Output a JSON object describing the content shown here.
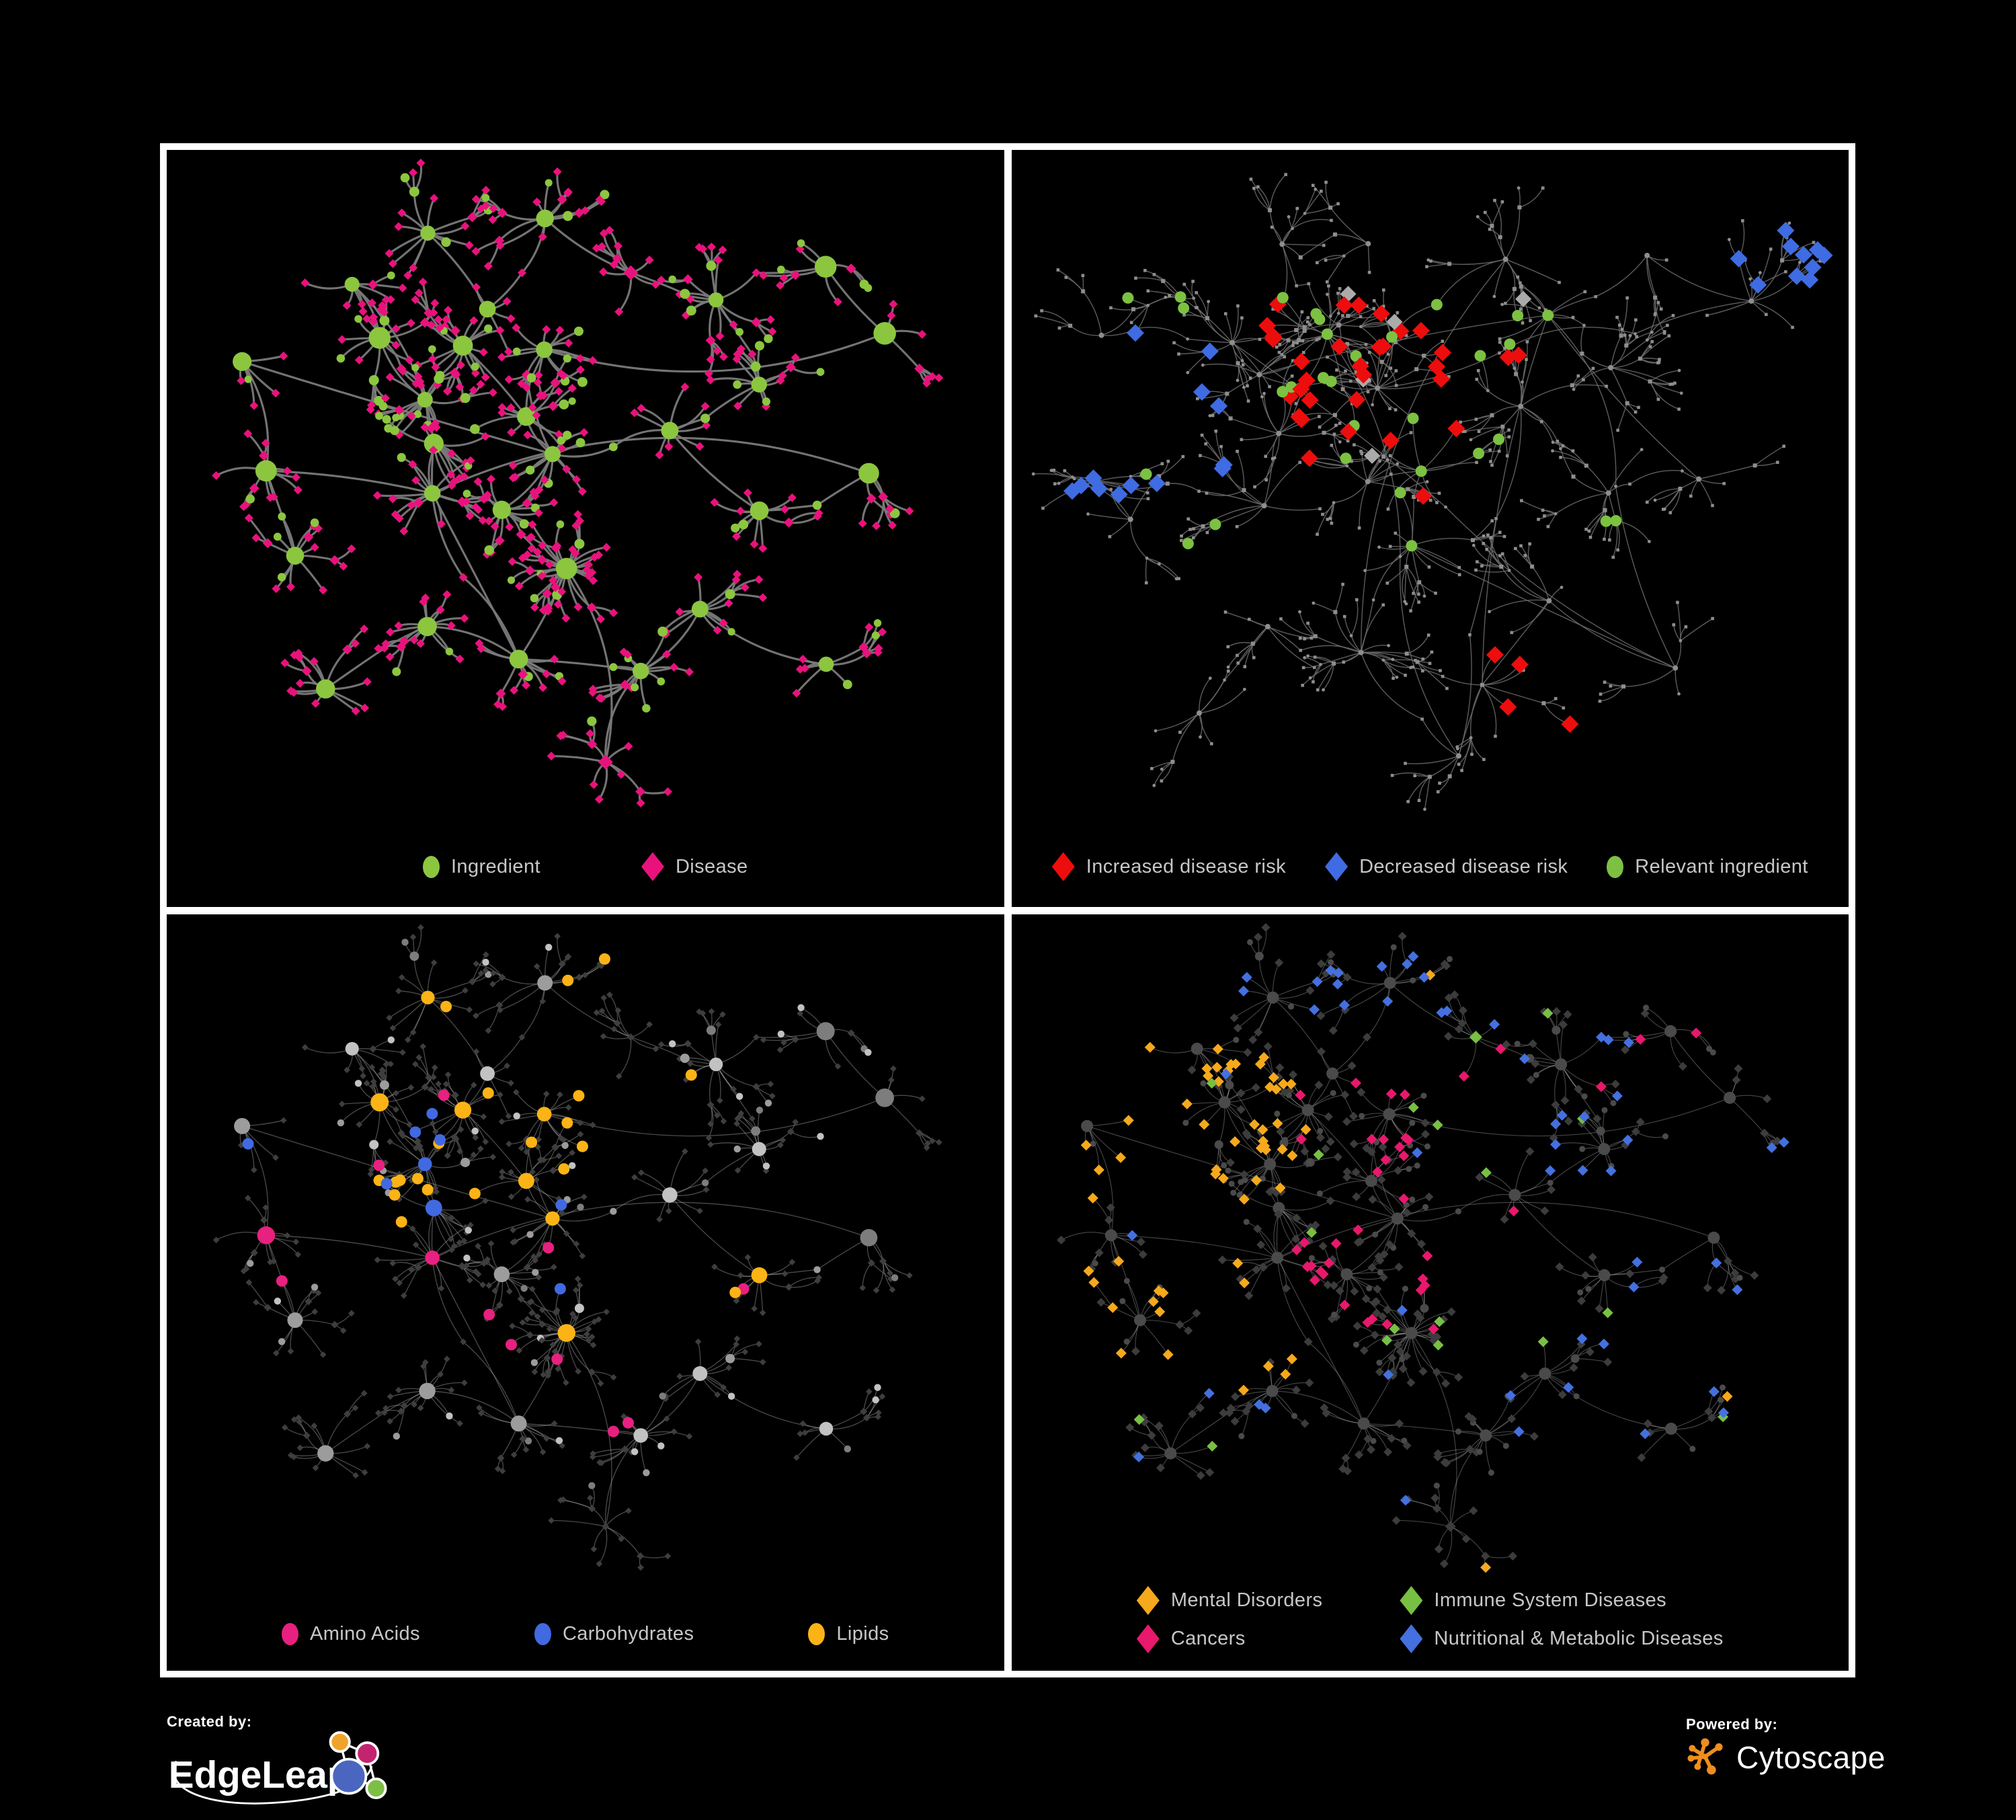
{
  "render": {
    "background": "#000000",
    "panel_border": "#FFFFFF",
    "legend_text": "#C7C7C7",
    "footer_text": "#FFFFFF",
    "edge_colors": [
      "#7A7A7A",
      "#6C6C6C",
      "#A6A6A6",
      "#B5B5B5"
    ],
    "tr_base": "#8E8E8E",
    "tr_silver": "#ABABAB",
    "bl_circle_shades": [
      "#C2C2C2",
      "#9C9C9C",
      "#7D7D7D"
    ],
    "bl_diamond": "#3E3E3E",
    "br_circle": "#4A4A4A",
    "br_diamond": "#3C3C3C"
  },
  "panels": [
    {
      "name": "ingredient-disease",
      "legend": [
        {
          "shape": "ellipse",
          "color": "#8CC63F",
          "label": "Ingredient"
        },
        {
          "shape": "diamond",
          "color": "#E9127D",
          "label": "Disease"
        }
      ]
    },
    {
      "name": "disease-risk",
      "legend": [
        {
          "shape": "diamond",
          "color": "#EE0D0D",
          "label": "Increased disease risk"
        },
        {
          "shape": "diamond",
          "color": "#3F6CE2",
          "label": "Decreased disease risk"
        },
        {
          "shape": "ellipse",
          "color": "#7CC142",
          "label": "Relevant ingredient"
        }
      ]
    },
    {
      "name": "ingredient-chemical-classes",
      "legend": [
        {
          "shape": "ellipse",
          "color": "#E82080",
          "label": "Amino Acids"
        },
        {
          "shape": "ellipse",
          "color": "#4169E1",
          "label": "Carbohydrates"
        },
        {
          "shape": "ellipse",
          "color": "#FCB316",
          "label": "Lipids"
        }
      ]
    },
    {
      "name": "disease-categories",
      "legend": [
        {
          "shape": "diamond",
          "color": "#F6A91C",
          "label": "Mental Disorders"
        },
        {
          "shape": "diamond",
          "color": "#E8186D",
          "label": "Cancers"
        },
        {
          "shape": "diamond",
          "color": "#78C043",
          "label": "Immune System Diseases"
        },
        {
          "shape": "diamond",
          "color": "#4470E0",
          "label": "Nutritional & Metabolic Diseases"
        }
      ]
    }
  ],
  "footer": {
    "created_by_label": "Created by:",
    "created_by_name": "EdgeLeap",
    "powered_by_label": "Powered by:",
    "powered_by_name": "Cytoscape",
    "edgeleap_logo": {
      "orange": "#F0A32A",
      "magenta": "#C4246F",
      "blue": "#4A66C0",
      "green": "#7CBF45",
      "line": "#FFFFFF"
    },
    "cytoscape_logo": {
      "orange": "#EF8E1F"
    }
  },
  "chart_data": [
    {
      "type": "network",
      "panel": "top-left",
      "legend": [
        "Ingredient",
        "Disease"
      ],
      "node_classes": [
        {
          "label": "Ingredient",
          "shape": "circle",
          "color": "#8CC63F"
        },
        {
          "label": "Disease",
          "shape": "diamond",
          "color": "#E9127D"
        }
      ],
      "edge_color": "#7A7A7A",
      "layout": "force-directed hub-and-spoke clusters",
      "approx_visible_nodes": 650,
      "background": "#000000"
    },
    {
      "type": "network",
      "panel": "top-right",
      "legend": [
        "Increased disease risk",
        "Decreased disease risk",
        "Relevant ingredient"
      ],
      "node_classes": [
        {
          "label": "Increased disease risk",
          "shape": "diamond",
          "color": "#EE0D0D"
        },
        {
          "label": "Decreased disease risk",
          "shape": "diamond",
          "color": "#3F6CE2"
        },
        {
          "label": "Relevant ingredient",
          "shape": "circle",
          "color": "#7CC142"
        },
        {
          "label": "",
          "shape": "diamond",
          "color": "#ABABAB"
        }
      ],
      "base_node_color": "#8E8E8E",
      "edge_color": "#6C6C6C",
      "layout": "sparse tree branches, highlights concentrated in core",
      "background": "#000000"
    },
    {
      "type": "network",
      "panel": "bottom-left",
      "legend": [
        "Amino Acids",
        "Carbohydrates",
        "Lipids"
      ],
      "node_classes": [
        {
          "label": "Amino Acids",
          "shape": "circle",
          "color": "#E82080"
        },
        {
          "label": "Carbohydrates",
          "shape": "circle",
          "color": "#4169E1"
        },
        {
          "label": "Lipids",
          "shape": "circle",
          "color": "#FCB316"
        }
      ],
      "base_node_colors": [
        "#9C9C9C",
        "#3E3E3E"
      ],
      "edge_color": "#A6A6A6",
      "layout": "same network as top-left; ingredient nodes colored by chemical class",
      "background": "#000000"
    },
    {
      "type": "network",
      "panel": "bottom-right",
      "legend": [
        "Mental Disorders",
        "Cancers",
        "Immune System Diseases",
        "Nutritional & Metabolic Diseases"
      ],
      "node_classes": [
        {
          "label": "Mental Disorders",
          "shape": "diamond",
          "color": "#F6A91C"
        },
        {
          "label": "Cancers",
          "shape": "diamond",
          "color": "#E8186D"
        },
        {
          "label": "Immune System Diseases",
          "shape": "diamond",
          "color": "#78C043"
        },
        {
          "label": "Nutritional & Metabolic Diseases",
          "shape": "diamond",
          "color": "#4470E0"
        }
      ],
      "base_node_colors": [
        "#3C3C3C",
        "#4A4A4A"
      ],
      "edge_color": "#B5B5B5",
      "layout": "same network as top-left; disease nodes colored by category (orange cluster left, pink center, blue right)",
      "background": "#000000"
    }
  ]
}
